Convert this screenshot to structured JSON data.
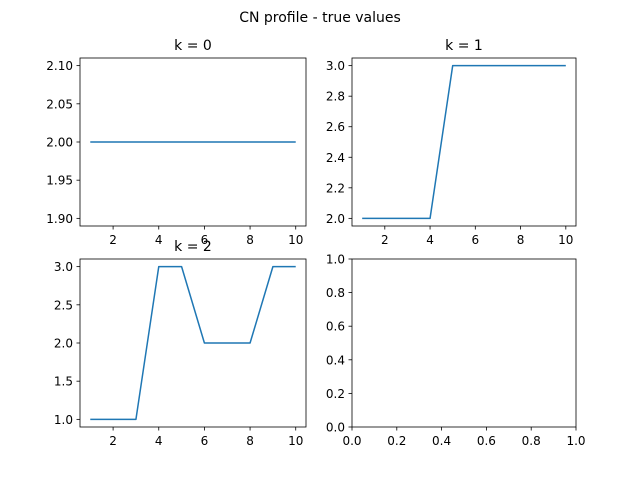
{
  "figure": {
    "suptitle": "CN profile - true values"
  },
  "chart_data": [
    {
      "type": "line",
      "title": "k = 0",
      "xlabel": "",
      "ylabel": "",
      "xlim": [
        0.55,
        10.45
      ],
      "ylim": [
        1.89,
        2.11
      ],
      "xticks": [
        2,
        4,
        6,
        8,
        10
      ],
      "yticks": [
        1.9,
        1.95,
        2.0,
        2.05,
        2.1
      ],
      "ytick_labels": [
        "1.90",
        "1.95",
        "2.00",
        "2.05",
        "2.10"
      ],
      "grid": false,
      "series": [
        {
          "color": "#1f77b4",
          "x": [
            1,
            2,
            3,
            4,
            5,
            6,
            7,
            8,
            9,
            10
          ],
          "y": [
            2,
            2,
            2,
            2,
            2,
            2,
            2,
            2,
            2,
            2
          ]
        }
      ]
    },
    {
      "type": "line",
      "title": "k = 1",
      "xlabel": "",
      "ylabel": "",
      "xlim": [
        0.55,
        10.45
      ],
      "ylim": [
        1.95,
        3.05
      ],
      "xticks": [
        2,
        4,
        6,
        8,
        10
      ],
      "yticks": [
        2.0,
        2.2,
        2.4,
        2.6,
        2.8,
        3.0
      ],
      "ytick_labels": [
        "2.0",
        "2.2",
        "2.4",
        "2.6",
        "2.8",
        "3.0"
      ],
      "grid": false,
      "series": [
        {
          "color": "#1f77b4",
          "x": [
            1,
            2,
            3,
            4,
            5,
            6,
            7,
            8,
            9,
            10
          ],
          "y": [
            2,
            2,
            2,
            2,
            3,
            3,
            3,
            3,
            3,
            3
          ]
        }
      ]
    },
    {
      "type": "line",
      "title": "k = 2",
      "xlabel": "",
      "ylabel": "",
      "xlim": [
        0.55,
        10.45
      ],
      "ylim": [
        0.9,
        3.1
      ],
      "xticks": [
        2,
        4,
        6,
        8,
        10
      ],
      "yticks": [
        1.0,
        1.5,
        2.0,
        2.5,
        3.0
      ],
      "ytick_labels": [
        "1.0",
        "1.5",
        "2.0",
        "2.5",
        "3.0"
      ],
      "grid": false,
      "series": [
        {
          "color": "#1f77b4",
          "x": [
            1,
            2,
            3,
            4,
            5,
            6,
            7,
            8,
            9,
            10
          ],
          "y": [
            1,
            1,
            1,
            3,
            3,
            2,
            2,
            2,
            3,
            3
          ]
        }
      ]
    },
    {
      "type": "line",
      "title": "",
      "xlabel": "",
      "ylabel": "",
      "xlim": [
        0,
        1
      ],
      "ylim": [
        0,
        1
      ],
      "xticks": [
        0.0,
        0.2,
        0.4,
        0.6,
        0.8,
        1.0
      ],
      "xtick_labels": [
        "0.0",
        "0.2",
        "0.4",
        "0.6",
        "0.8",
        "1.0"
      ],
      "yticks": [
        0.0,
        0.2,
        0.4,
        0.6,
        0.8,
        1.0
      ],
      "ytick_labels": [
        "0.0",
        "0.2",
        "0.4",
        "0.6",
        "0.8",
        "1.0"
      ],
      "grid": false,
      "series": []
    }
  ]
}
